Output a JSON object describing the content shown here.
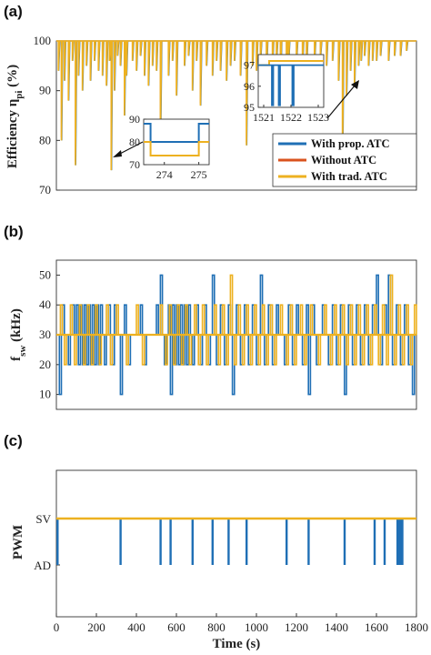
{
  "colors": {
    "prop": "#1f6fb5",
    "without": "#d9531e",
    "trad": "#edb120",
    "axis": "#333333"
  },
  "chart_data": [
    {
      "panel_label": "(a)",
      "type": "line",
      "ylabel": "Efficiency η",
      "ylabel_sub": "pi",
      "ylabel_unit": " (%)",
      "ylim": [
        70,
        100
      ],
      "xlim": [
        0,
        1800
      ],
      "yticks": [
        "70",
        "80",
        "90",
        "100"
      ],
      "ytick_values": [
        70,
        80,
        90,
        100
      ],
      "legend": {
        "placement": "bottom-right",
        "entries": [
          "With prop. ATC",
          "Without ATC",
          "With trad. ATC"
        ]
      },
      "series": [
        {
          "name": "With prop. ATC",
          "color": "#1f6fb5"
        },
        {
          "name": "Without ATC",
          "color": "#d9531e"
        },
        {
          "name": "With trad. ATC",
          "color": "#edb120"
        }
      ],
      "dips": [
        [
          10,
          94
        ],
        [
          25,
          80
        ],
        [
          40,
          92
        ],
        [
          60,
          88
        ],
        [
          80,
          96
        ],
        [
          95,
          75
        ],
        [
          110,
          93
        ],
        [
          130,
          90
        ],
        [
          150,
          95
        ],
        [
          170,
          92
        ],
        [
          190,
          96
        ],
        [
          210,
          94
        ],
        [
          230,
          93
        ],
        [
          250,
          91
        ],
        [
          265,
          96
        ],
        [
          274,
          74
        ],
        [
          290,
          90
        ],
        [
          305,
          97
        ],
        [
          320,
          95
        ],
        [
          340,
          85
        ],
        [
          350,
          93
        ],
        [
          380,
          96
        ],
        [
          400,
          94
        ],
        [
          420,
          97
        ],
        [
          440,
          93
        ],
        [
          460,
          91
        ],
        [
          480,
          95
        ],
        [
          500,
          94
        ],
        [
          520,
          80
        ],
        [
          560,
          93
        ],
        [
          580,
          96
        ],
        [
          600,
          89
        ],
        [
          640,
          95
        ],
        [
          660,
          97
        ],
        [
          680,
          90
        ],
        [
          700,
          96
        ],
        [
          720,
          87
        ],
        [
          750,
          95
        ],
        [
          780,
          93
        ],
        [
          800,
          96
        ],
        [
          820,
          94
        ],
        [
          850,
          92
        ],
        [
          870,
          95
        ],
        [
          890,
          96
        ],
        [
          920,
          93
        ],
        [
          950,
          79
        ],
        [
          980,
          95
        ],
        [
          1000,
          94
        ],
        [
          1020,
          96
        ],
        [
          1050,
          93
        ],
        [
          1080,
          95
        ],
        [
          1100,
          96
        ],
        [
          1120,
          92
        ],
        [
          1150,
          94
        ],
        [
          1160,
          95
        ],
        [
          1200,
          96
        ],
        [
          1230,
          95
        ],
        [
          1250,
          94
        ],
        [
          1290,
          96
        ],
        [
          1320,
          97
        ],
        [
          1350,
          95
        ],
        [
          1380,
          96
        ],
        [
          1410,
          92
        ],
        [
          1430,
          75
        ],
        [
          1450,
          89
        ],
        [
          1470,
          94
        ],
        [
          1490,
          91
        ],
        [
          1510,
          95
        ],
        [
          1523,
          96
        ],
        [
          1540,
          97
        ],
        [
          1560,
          95
        ],
        [
          1580,
          96
        ],
        [
          1600,
          96
        ],
        [
          1620,
          97
        ],
        [
          1660,
          96
        ],
        [
          1690,
          97
        ],
        [
          1720,
          97
        ],
        [
          1750,
          98
        ]
      ],
      "inset_left": {
        "x_ticks": [
          "274",
          "275"
        ],
        "y_ticks": [
          "70",
          "80",
          "90"
        ],
        "xlim": [
          273.4,
          275.3
        ],
        "ylim": [
          70,
          90
        ],
        "prop_series": [
          [
            273.4,
            88
          ],
          [
            273.6,
            88
          ],
          [
            273.6,
            80
          ],
          [
            275.0,
            80
          ],
          [
            275.0,
            88
          ],
          [
            275.3,
            88
          ]
        ],
        "trad_series": [
          [
            273.4,
            80
          ],
          [
            273.6,
            80
          ],
          [
            273.6,
            74
          ],
          [
            275.0,
            74
          ],
          [
            275.0,
            80
          ],
          [
            275.3,
            80
          ]
        ]
      },
      "inset_right": {
        "x_ticks": [
          "1521",
          "1522",
          "1523"
        ],
        "y_ticks": [
          "95",
          "96",
          "97"
        ],
        "xlim": [
          1520.8,
          1523.2
        ],
        "ylim": [
          95,
          97.5
        ],
        "prop_dips": [
          1521.3,
          1521.55,
          1522.05
        ],
        "prop_low": 95.1,
        "prop_level": 97.0,
        "trad_series": [
          [
            1520.8,
            97.0
          ],
          [
            1521.2,
            97.0
          ],
          [
            1521.2,
            97.2
          ],
          [
            1523.2,
            97.2
          ]
        ]
      }
    },
    {
      "panel_label": "(b)",
      "type": "line",
      "ylabel": "f",
      "ylabel_sub": "sw",
      "ylabel_unit": " (kHz)",
      "ylim": [
        5,
        55
      ],
      "xlim": [
        0,
        1800
      ],
      "yticks": [
        "10",
        "20",
        "30",
        "40",
        "50"
      ],
      "ytick_values": [
        10,
        20,
        30,
        40,
        50
      ],
      "baseline": 30,
      "series": [
        {
          "name": "With prop. ATC",
          "color": "#1f6fb5"
        },
        {
          "name": "With trad. ATC",
          "color": "#edb120"
        }
      ],
      "prop_segments": [
        [
          15,
          10
        ],
        [
          30,
          40
        ],
        [
          60,
          20
        ],
        [
          80,
          40
        ],
        [
          100,
          40
        ],
        [
          110,
          20
        ],
        [
          120,
          40
        ],
        [
          130,
          20
        ],
        [
          140,
          40
        ],
        [
          150,
          20
        ],
        [
          160,
          40
        ],
        [
          170,
          20
        ],
        [
          180,
          40
        ],
        [
          190,
          20
        ],
        [
          200,
          40
        ],
        [
          210,
          20
        ],
        [
          220,
          40
        ],
        [
          240,
          20
        ],
        [
          260,
          40
        ],
        [
          280,
          20
        ],
        [
          290,
          40
        ],
        [
          320,
          10
        ],
        [
          340,
          40
        ],
        [
          360,
          20
        ],
        [
          420,
          40
        ],
        [
          440,
          20
        ],
        [
          500,
          40
        ],
        [
          520,
          50
        ],
        [
          540,
          20
        ],
        [
          560,
          40
        ],
        [
          570,
          10
        ],
        [
          580,
          40
        ],
        [
          590,
          20
        ],
        [
          600,
          40
        ],
        [
          610,
          20
        ],
        [
          620,
          40
        ],
        [
          630,
          20
        ],
        [
          640,
          40
        ],
        [
          650,
          20
        ],
        [
          660,
          40
        ],
        [
          680,
          20
        ],
        [
          700,
          40
        ],
        [
          720,
          20
        ],
        [
          740,
          40
        ],
        [
          760,
          20
        ],
        [
          780,
          50
        ],
        [
          800,
          20
        ],
        [
          820,
          40
        ],
        [
          840,
          20
        ],
        [
          860,
          40
        ],
        [
          880,
          10
        ],
        [
          900,
          40
        ],
        [
          920,
          20
        ],
        [
          940,
          40
        ],
        [
          960,
          20
        ],
        [
          980,
          40
        ],
        [
          1000,
          20
        ],
        [
          1020,
          50
        ],
        [
          1040,
          20
        ],
        [
          1060,
          40
        ],
        [
          1080,
          20
        ],
        [
          1100,
          40
        ],
        [
          1140,
          20
        ],
        [
          1160,
          40
        ],
        [
          1180,
          20
        ],
        [
          1200,
          40
        ],
        [
          1230,
          20
        ],
        [
          1250,
          40
        ],
        [
          1260,
          10
        ],
        [
          1280,
          40
        ],
        [
          1300,
          20
        ],
        [
          1330,
          40
        ],
        [
          1360,
          20
        ],
        [
          1380,
          40
        ],
        [
          1400,
          20
        ],
        [
          1420,
          40
        ],
        [
          1440,
          10
        ],
        [
          1460,
          40
        ],
        [
          1480,
          20
        ],
        [
          1500,
          40
        ],
        [
          1520,
          20
        ],
        [
          1540,
          40
        ],
        [
          1560,
          20
        ],
        [
          1580,
          40
        ],
        [
          1600,
          50
        ],
        [
          1620,
          20
        ],
        [
          1640,
          40
        ],
        [
          1660,
          50
        ],
        [
          1680,
          20
        ],
        [
          1700,
          40
        ],
        [
          1720,
          20
        ],
        [
          1740,
          40
        ],
        [
          1760,
          20
        ],
        [
          1780,
          10
        ]
      ],
      "trad_segments": [
        [
          20,
          40
        ],
        [
          40,
          20
        ],
        [
          70,
          40
        ],
        [
          90,
          20
        ],
        [
          115,
          40
        ],
        [
          135,
          20
        ],
        [
          155,
          40
        ],
        [
          175,
          20
        ],
        [
          195,
          40
        ],
        [
          215,
          20
        ],
        [
          250,
          40
        ],
        [
          270,
          20
        ],
        [
          300,
          40
        ],
        [
          350,
          20
        ],
        [
          400,
          40
        ],
        [
          430,
          20
        ],
        [
          520,
          40
        ],
        [
          545,
          20
        ],
        [
          565,
          40
        ],
        [
          585,
          20
        ],
        [
          605,
          40
        ],
        [
          625,
          20
        ],
        [
          645,
          40
        ],
        [
          665,
          20
        ],
        [
          690,
          40
        ],
        [
          710,
          20
        ],
        [
          730,
          40
        ],
        [
          750,
          20
        ],
        [
          790,
          40
        ],
        [
          810,
          20
        ],
        [
          830,
          40
        ],
        [
          850,
          20
        ],
        [
          870,
          50
        ],
        [
          890,
          20
        ],
        [
          910,
          40
        ],
        [
          930,
          20
        ],
        [
          950,
          40
        ],
        [
          970,
          20
        ],
        [
          990,
          40
        ],
        [
          1010,
          20
        ],
        [
          1030,
          40
        ],
        [
          1050,
          20
        ],
        [
          1070,
          40
        ],
        [
          1090,
          20
        ],
        [
          1120,
          40
        ],
        [
          1150,
          20
        ],
        [
          1170,
          40
        ],
        [
          1190,
          20
        ],
        [
          1220,
          40
        ],
        [
          1240,
          20
        ],
        [
          1270,
          40
        ],
        [
          1310,
          20
        ],
        [
          1340,
          40
        ],
        [
          1370,
          20
        ],
        [
          1390,
          40
        ],
        [
          1410,
          20
        ],
        [
          1430,
          40
        ],
        [
          1450,
          20
        ],
        [
          1470,
          40
        ],
        [
          1490,
          20
        ],
        [
          1510,
          40
        ],
        [
          1530,
          20
        ],
        [
          1550,
          40
        ],
        [
          1570,
          20
        ],
        [
          1590,
          40
        ],
        [
          1610,
          20
        ],
        [
          1630,
          40
        ],
        [
          1650,
          20
        ],
        [
          1670,
          50
        ],
        [
          1690,
          20
        ],
        [
          1710,
          40
        ],
        [
          1730,
          20
        ],
        [
          1750,
          40
        ],
        [
          1770,
          20
        ],
        [
          1790,
          40
        ]
      ]
    },
    {
      "panel_label": "(c)",
      "type": "line",
      "ylabel": "PWM",
      "xlabel": "Time (s)",
      "xlim": [
        0,
        1800
      ],
      "xticks": [
        "0",
        "200",
        "400",
        "600",
        "800",
        "1000",
        "1200",
        "1400",
        "1600",
        "1800"
      ],
      "xtick_values": [
        0,
        200,
        400,
        600,
        800,
        1000,
        1200,
        1400,
        1600,
        1800
      ],
      "yticks": [
        "AD",
        "SV"
      ],
      "series": [
        {
          "name": "With prop. ATC",
          "color": "#1f6fb5"
        },
        {
          "name": "With trad. ATC",
          "color": "#edb120"
        }
      ],
      "ad_events": [
        5,
        320,
        520,
        570,
        680,
        780,
        860,
        950,
        1150,
        1260,
        1440,
        1590,
        1640
      ],
      "ad_block": [
        1700,
        1735
      ]
    }
  ]
}
